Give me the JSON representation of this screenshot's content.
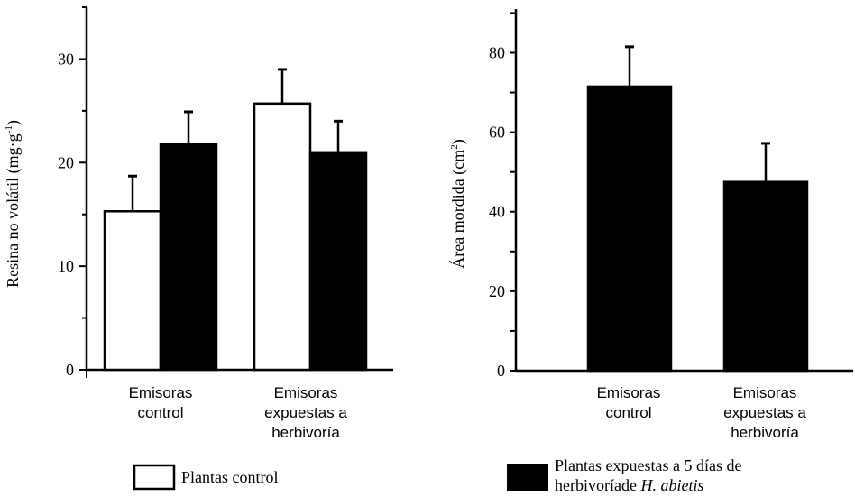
{
  "chart_data": [
    {
      "type": "bar",
      "categories": [
        [
          "Emisoras",
          "control"
        ],
        [
          "Emisoras",
          "expuestas a",
          "herbivoría"
        ]
      ],
      "ylabel": {
        "main": "Resina no volátil (mg·g",
        "sup": "-1",
        "tail": ")"
      },
      "ylim": [
        0,
        35
      ],
      "yticks": [
        "0",
        "10",
        "20",
        "30"
      ],
      "series": [
        {
          "name": "Plantas control",
          "fill": "#ffffff",
          "values": [
            15.3,
            25.7
          ],
          "errors": [
            3.4,
            3.3
          ]
        },
        {
          "name": "Plantas expuestas a 5 días de herbivoríade H. abietis",
          "fill": "#000000",
          "values": [
            21.8,
            21.0
          ],
          "errors": [
            3.1,
            3.0
          ]
        }
      ],
      "legend": [
        {
          "text": "Plantas control",
          "fill": "#ffffff"
        }
      ]
    },
    {
      "type": "bar",
      "categories": [
        [
          "Emisoras",
          "control"
        ],
        [
          "Emisoras",
          "expuestas a",
          "herbivoría"
        ]
      ],
      "ylabel": {
        "main": "Área mordida (cm",
        "sup": "2",
        "tail": ")"
      },
      "ylim": [
        0,
        91
      ],
      "yticks": [
        "0",
        "20",
        "40",
        "60",
        "80"
      ],
      "series": [
        {
          "name": "Plantas expuestas a 5 días de herbivoríade H. abietis",
          "fill": "#000000",
          "values": [
            71.5,
            47.5
          ],
          "errors": [
            10.0,
            9.7
          ]
        }
      ],
      "legend": [
        {
          "text": "Plantas expuestas a 5 días de",
          "text2": "herbivoríade ",
          "italic": "H. abietis",
          "fill": "#000000"
        }
      ]
    }
  ]
}
